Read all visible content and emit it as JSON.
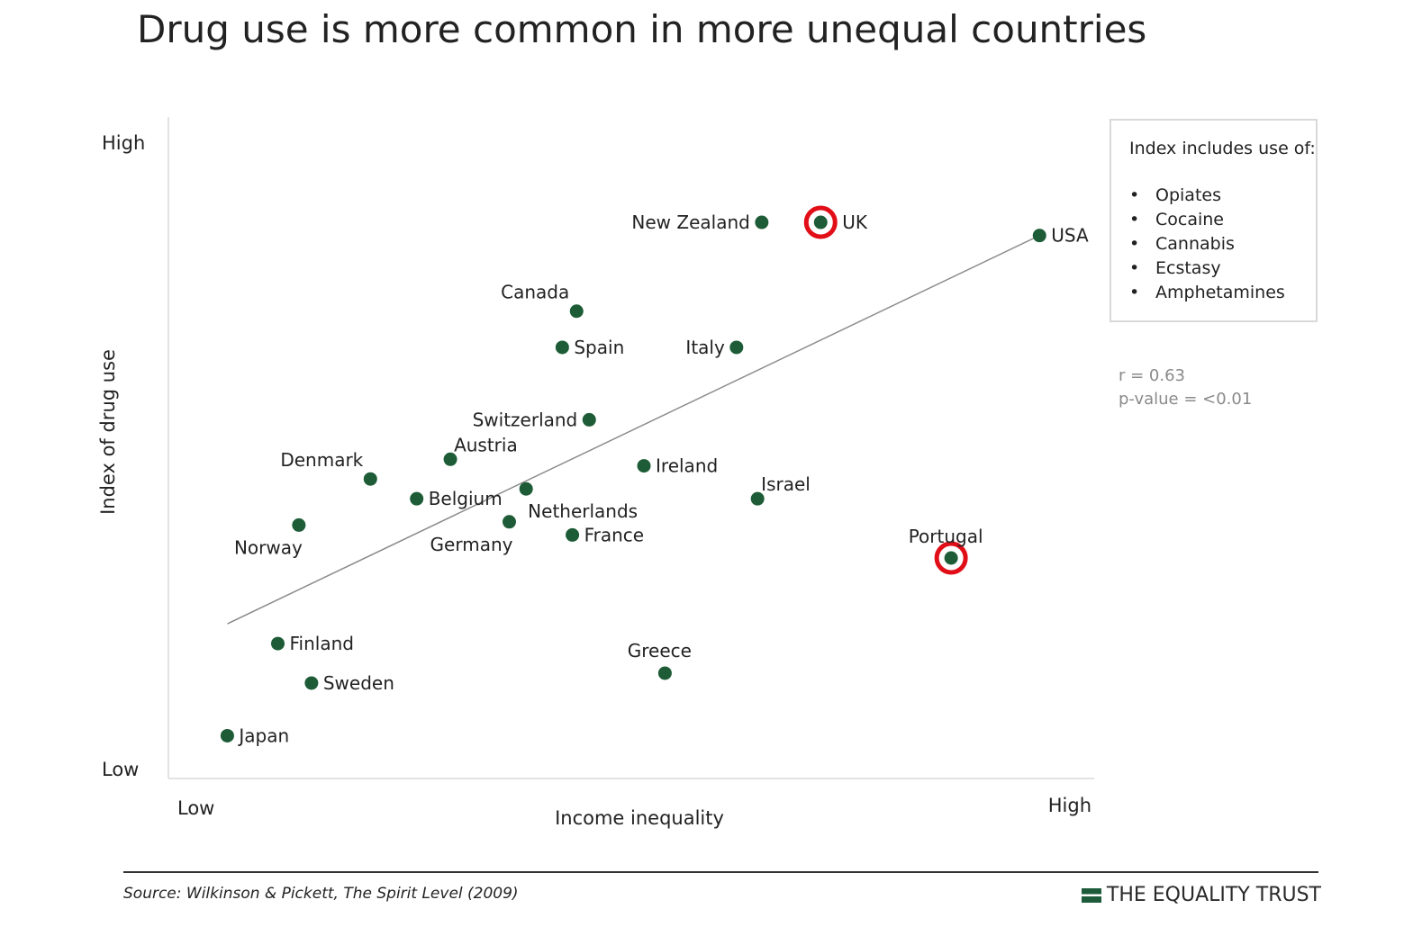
{
  "chart_data": {
    "type": "scatter",
    "title": "Drug use is more common in more unequal countries",
    "xlabel": "Income inequality",
    "ylabel": "Index of drug use",
    "x_ticks": {
      "low": "Low",
      "high": "High"
    },
    "y_ticks": {
      "low": "Low",
      "high": "High"
    },
    "points": [
      {
        "label": "Japan",
        "x": 0.07,
        "y": 0.04,
        "label_pos": "right"
      },
      {
        "label": "Finland",
        "x": 0.13,
        "y": 0.18,
        "label_pos": "right"
      },
      {
        "label": "Sweden",
        "x": 0.17,
        "y": 0.12,
        "label_pos": "right"
      },
      {
        "label": "Norway",
        "x": 0.155,
        "y": 0.36,
        "label_pos": "below-left"
      },
      {
        "label": "Denmark",
        "x": 0.24,
        "y": 0.43,
        "label_pos": "above-left"
      },
      {
        "label": "Belgium",
        "x": 0.295,
        "y": 0.4,
        "label_pos": "right"
      },
      {
        "label": "Austria",
        "x": 0.335,
        "y": 0.46,
        "label_pos": "above-right"
      },
      {
        "label": "Netherlands",
        "x": 0.425,
        "y": 0.415,
        "label_pos": "below-right"
      },
      {
        "label": "Germany",
        "x": 0.405,
        "y": 0.365,
        "label_pos": "below-left"
      },
      {
        "label": "France",
        "x": 0.48,
        "y": 0.345,
        "label_pos": "right"
      },
      {
        "label": "Switzerland",
        "x": 0.5,
        "y": 0.52,
        "label_pos": "left"
      },
      {
        "label": "Canada",
        "x": 0.485,
        "y": 0.685,
        "label_pos": "above-left"
      },
      {
        "label": "Spain",
        "x": 0.468,
        "y": 0.63,
        "label_pos": "right"
      },
      {
        "label": "Ireland",
        "x": 0.565,
        "y": 0.45,
        "label_pos": "right"
      },
      {
        "label": "Italy",
        "x": 0.675,
        "y": 0.63,
        "label_pos": "left"
      },
      {
        "label": "Israel",
        "x": 0.7,
        "y": 0.4,
        "label_pos": "above-right"
      },
      {
        "label": "Greece",
        "x": 0.59,
        "y": 0.135,
        "label_pos": "above"
      },
      {
        "label": "New Zealand",
        "x": 0.705,
        "y": 0.82,
        "label_pos": "left"
      },
      {
        "label": "UK",
        "x": 0.775,
        "y": 0.82,
        "label_pos": "right",
        "highlight": true
      },
      {
        "label": "Portugal",
        "x": 0.93,
        "y": 0.31,
        "label_pos": "above",
        "highlight": true
      },
      {
        "label": "USA",
        "x": 1.035,
        "y": 0.8,
        "label_pos": "right"
      }
    ],
    "trendline": {
      "x": [
        0.07,
        1.035
      ],
      "y": [
        0.21,
        0.8
      ]
    },
    "xlim": [
      0,
      1.1
    ],
    "ylim": [
      -0.025,
      0.98
    ],
    "grid": false,
    "point_color": "#1d5c36",
    "highlight_color": "#e10e17",
    "trend_color": "#8c8c8c"
  },
  "legend": {
    "title": "Index includes use of:",
    "items": [
      "Opiates",
      "Cocaine",
      "Cannabis",
      "Ecstasy",
      "Amphetamines"
    ],
    "bullet": "•"
  },
  "stats": {
    "r": "r = 0.63",
    "p": "p-value = <0.01"
  },
  "footer": {
    "source": "Source: Wilkinson & Pickett, The Spirit Level (2009)",
    "brand": "THE EQUALITY TRUST"
  }
}
